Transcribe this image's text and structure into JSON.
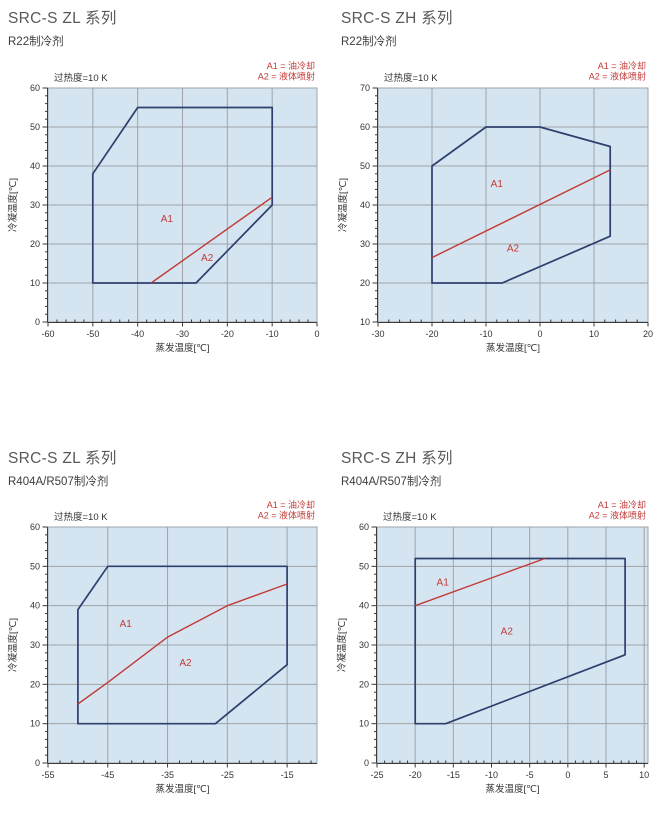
{
  "page": {
    "background": "#ffffff"
  },
  "colors": {
    "plot_bg": "#d4e4f1",
    "grid": "#9fa3a7",
    "axis": "#3a3a3a",
    "tick_text": "#333333",
    "envelope": "#2d3f6e",
    "divider_red": "#c23a36",
    "title_text": "#595959",
    "subtitle_text": "#3d3d3d"
  },
  "chart_data": [
    {
      "type": "area",
      "title": "SRC-S ZL 系列",
      "subtitle": "R22制冷剂",
      "superheat": "过热度=10 K",
      "legend": [
        "A1 = 油冷却",
        "A2 = 液体喷射"
      ],
      "legend_position": "top-right",
      "xlabel": "蒸发温度[℃]",
      "ylabel": "冷凝温度[℃]",
      "xlim": [
        -60,
        0
      ],
      "ylim": [
        0,
        60
      ],
      "xticks": [
        -60,
        -50,
        -40,
        -30,
        -20,
        -10,
        0
      ],
      "yticks": [
        0,
        10,
        20,
        30,
        40,
        50,
        60
      ],
      "x_minor_step": 2,
      "y_minor_step": 2,
      "grid": true,
      "envelope": [
        [
          -50,
          10
        ],
        [
          -50,
          38
        ],
        [
          -40,
          55
        ],
        [
          -10,
          55
        ],
        [
          -10,
          30
        ],
        [
          -27,
          10
        ]
      ],
      "divider_a1_a2": [
        [
          -37,
          10
        ],
        [
          -10,
          32
        ]
      ],
      "region_labels": [
        {
          "text": "A1",
          "x": -33.5,
          "y": 26.5
        },
        {
          "text": "A2",
          "x": -24.5,
          "y": 16.5
        }
      ]
    },
    {
      "type": "area",
      "title": "SRC-S ZH 系列",
      "subtitle": "R22制冷剂",
      "superheat": "过热度=10 K",
      "legend": [
        "A1 = 油冷却",
        "A2 = 液体喷射"
      ],
      "legend_position": "top-right",
      "xlabel": "蒸发温度[℃]",
      "ylabel": "冷凝温度[℃]",
      "xlim": [
        -30,
        20
      ],
      "ylim": [
        10,
        70
      ],
      "xticks": [
        -30,
        -20,
        -10,
        0,
        10,
        20
      ],
      "yticks": [
        10,
        20,
        30,
        40,
        50,
        60,
        70
      ],
      "x_minor_step": 2,
      "y_minor_step": 2,
      "grid": true,
      "envelope": [
        [
          -20,
          20
        ],
        [
          -20,
          50
        ],
        [
          -10,
          60
        ],
        [
          0,
          60
        ],
        [
          13,
          55
        ],
        [
          13,
          32
        ],
        [
          -7,
          20
        ]
      ],
      "divider_a1_a2": [
        [
          -20,
          26.5
        ],
        [
          13,
          49
        ]
      ],
      "region_labels": [
        {
          "text": "A1",
          "x": -8,
          "y": 45.5
        },
        {
          "text": "A2",
          "x": -5,
          "y": 29
        }
      ]
    },
    {
      "type": "area",
      "title": "SRC-S ZL 系列",
      "subtitle": "R404A/R507制冷剂",
      "superheat": "过热度=10 K",
      "legend": [
        "A1 = 油冷却",
        "A2 = 液体喷射"
      ],
      "legend_position": "top-right",
      "xlabel": "蒸发温度[℃]",
      "ylabel": "冷凝温度[℃]",
      "xlim": [
        -55,
        -10
      ],
      "ylim": [
        0,
        60
      ],
      "xticks": [
        -55,
        -45,
        -35,
        -25,
        -15
      ],
      "yticks": [
        0,
        10,
        20,
        30,
        40,
        50,
        60
      ],
      "x_minor_step": 2,
      "y_minor_step": 2,
      "grid": true,
      "envelope": [
        [
          -50,
          10
        ],
        [
          -50,
          39
        ],
        [
          -45,
          50
        ],
        [
          -15,
          50
        ],
        [
          -15,
          25
        ],
        [
          -27,
          10
        ]
      ],
      "divider_a1_a2": [
        [
          -50,
          15
        ],
        [
          -45,
          20.5
        ],
        [
          -35,
          32
        ],
        [
          -25,
          40
        ],
        [
          -15,
          45.5
        ]
      ],
      "region_labels": [
        {
          "text": "A1",
          "x": -42,
          "y": 35.5
        },
        {
          "text": "A2",
          "x": -32,
          "y": 25.5
        }
      ]
    },
    {
      "type": "area",
      "title": "SRC-S ZH 系列",
      "subtitle": "R404A/R507制冷剂",
      "superheat": "过热度=10 K",
      "legend": [
        "A1 = 油冷却",
        "A2 = 液体喷射"
      ],
      "legend_position": "top-right",
      "xlabel": "蒸发温度[℃]",
      "ylabel": "冷凝温度[℃]",
      "xlim": [
        -25,
        10.5
      ],
      "ylim": [
        0,
        60
      ],
      "xticks": [
        -25,
        -20,
        -15,
        -10,
        -5,
        0,
        5,
        10
      ],
      "yticks": [
        0,
        10,
        20,
        30,
        40,
        50,
        60
      ],
      "x_minor_step": 1,
      "y_minor_step": 2,
      "grid": true,
      "envelope": [
        [
          -20,
          10
        ],
        [
          -20,
          52
        ],
        [
          7.5,
          52
        ],
        [
          7.5,
          27.5
        ],
        [
          -16,
          10
        ]
      ],
      "divider_a1_a2": [
        [
          -20,
          40
        ],
        [
          -3,
          52
        ]
      ],
      "region_labels": [
        {
          "text": "A1",
          "x": -16.4,
          "y": 46
        },
        {
          "text": "A2",
          "x": -8,
          "y": 33.5
        }
      ]
    }
  ]
}
